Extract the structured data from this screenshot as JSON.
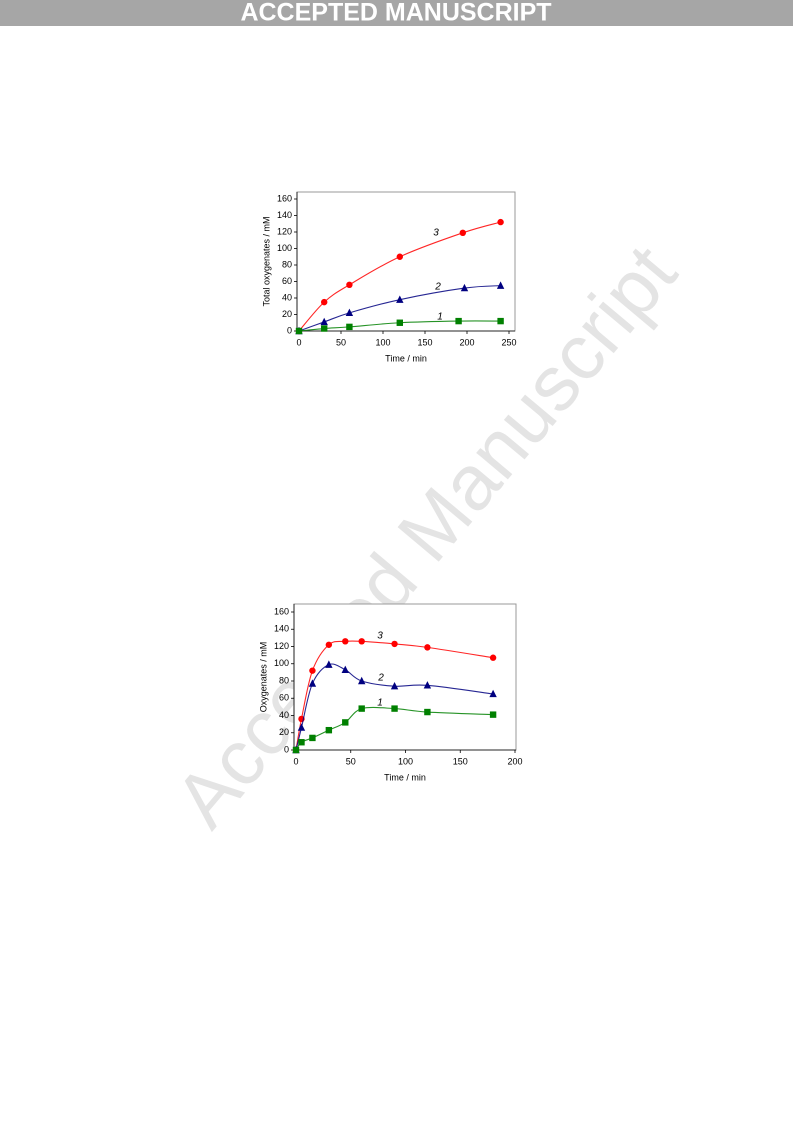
{
  "header": {
    "title": "ACCEPTED MANUSCRIPT"
  },
  "watermark": "Accepted Manuscript",
  "chart_data": [
    {
      "type": "line",
      "xlabel": "Time / min",
      "ylabel": "Total oxygenates / mM",
      "xlim": [
        0,
        250
      ],
      "xticks": [
        0,
        50,
        100,
        150,
        200,
        250
      ],
      "ylim": [
        0,
        160
      ],
      "yticks": [
        0,
        20,
        40,
        60,
        80,
        100,
        120,
        140,
        160
      ],
      "series": [
        {
          "name": "3",
          "color": "#ff0000",
          "marker": "circle",
          "x": [
            0,
            30,
            60,
            120,
            195,
            240
          ],
          "values": [
            0,
            35,
            56,
            90,
            119,
            132
          ]
        },
        {
          "name": "2",
          "color": "#000080",
          "marker": "triangle",
          "x": [
            0,
            30,
            60,
            120,
            197,
            240
          ],
          "values": [
            0,
            11,
            22,
            38,
            52,
            55
          ]
        },
        {
          "name": "1",
          "color": "#008000",
          "marker": "square",
          "x": [
            0,
            30,
            60,
            120,
            190,
            240
          ],
          "values": [
            0,
            3,
            5,
            10,
            12,
            12
          ]
        }
      ]
    },
    {
      "type": "line",
      "xlabel": "Time / min",
      "ylabel": "Oxygenates / mM",
      "xlim": [
        0,
        200
      ],
      "xticks": [
        0,
        50,
        100,
        150,
        200
      ],
      "ylim": [
        0,
        160
      ],
      "yticks": [
        0,
        20,
        40,
        60,
        80,
        100,
        120,
        140,
        160
      ],
      "series": [
        {
          "name": "3",
          "color": "#ff0000",
          "marker": "circle",
          "x": [
            0,
            5,
            15,
            30,
            45,
            60,
            90,
            120,
            180
          ],
          "values": [
            0,
            36,
            92,
            122,
            126,
            126,
            123,
            119,
            107
          ]
        },
        {
          "name": "2",
          "color": "#000080",
          "marker": "triangle",
          "x": [
            0,
            5,
            15,
            30,
            45,
            60,
            90,
            120,
            180
          ],
          "values": [
            0,
            26,
            77,
            99,
            93,
            80,
            74,
            75,
            65
          ]
        },
        {
          "name": "1",
          "color": "#008000",
          "marker": "square",
          "x": [
            0,
            5,
            15,
            30,
            45,
            60,
            90,
            120,
            180
          ],
          "values": [
            0,
            9,
            14,
            23,
            32,
            48,
            48,
            44,
            41
          ]
        }
      ]
    }
  ]
}
